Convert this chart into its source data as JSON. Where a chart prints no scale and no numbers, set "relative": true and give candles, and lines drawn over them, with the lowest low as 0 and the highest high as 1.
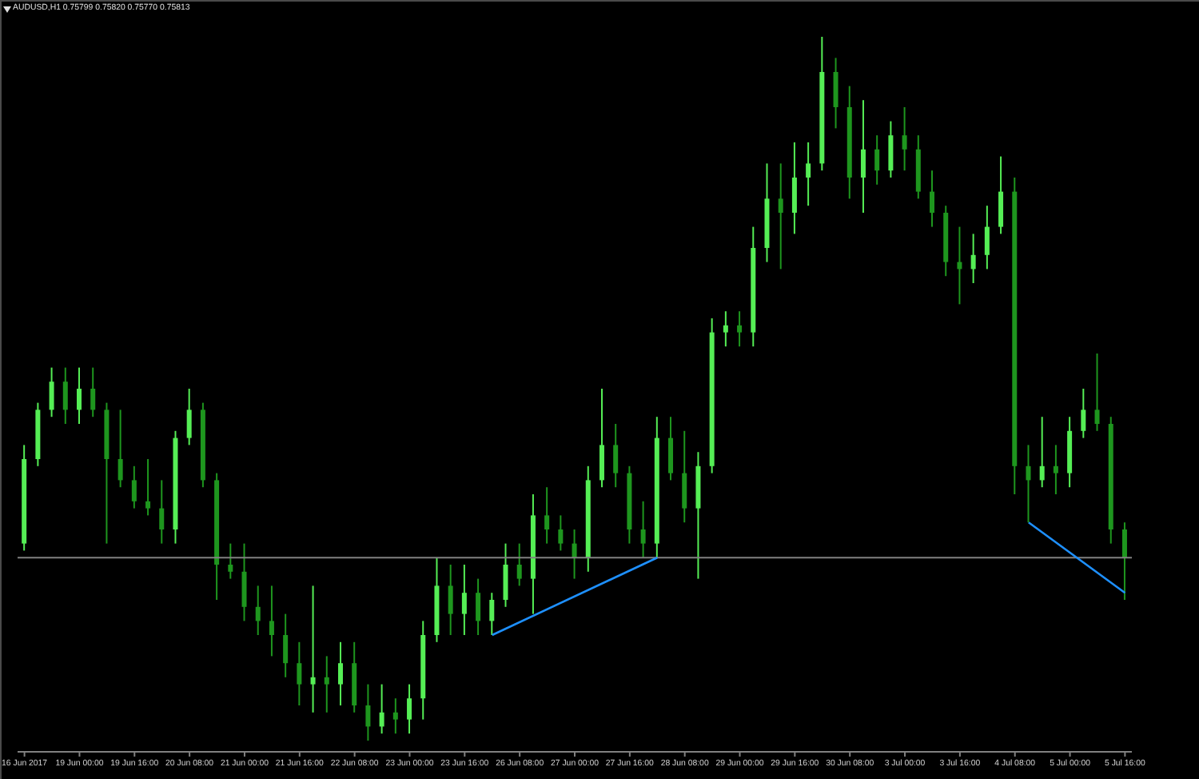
{
  "chart_data": {
    "type": "candlestick",
    "title": "AUDUSD,H1 0.75799 0.75820 0.75770 0.75813",
    "relative": true,
    "categories": [
      "16 Jun 2017",
      null,
      null,
      null,
      "19 Jun 00:00",
      null,
      null,
      null,
      "19 Jun 16:00",
      null,
      null,
      null,
      "20 Jun 08:00",
      null,
      null,
      null,
      "21 Jun 00:00",
      null,
      null,
      null,
      "21 Jun 16:00",
      null,
      null,
      null,
      "22 Jun 08:00",
      null,
      null,
      null,
      "23 Jun 00:00",
      null,
      null,
      null,
      "23 Jun 16:00",
      null,
      null,
      null,
      "26 Jun 08:00",
      null,
      null,
      null,
      "27 Jun 00:00",
      null,
      null,
      null,
      "27 Jun 16:00",
      null,
      null,
      null,
      "28 Jun 08:00",
      null,
      null,
      null,
      "29 Jun 00:00",
      null,
      null,
      null,
      "29 Jun 16:00",
      null,
      null,
      null,
      "30 Jun 08:00",
      null,
      null,
      null,
      "3 Jul 00:00",
      null,
      null,
      null,
      "3 Jul 16:00",
      null,
      null,
      null,
      "4 Jul 08:00",
      null,
      null,
      null,
      "5 Jul 00:00",
      null,
      null,
      null,
      "5 Jul 16:00"
    ],
    "ohlc": [
      [
        0.28,
        0.42,
        0.27,
        0.4
      ],
      [
        0.4,
        0.48,
        0.39,
        0.47
      ],
      [
        0.47,
        0.53,
        0.46,
        0.51
      ],
      [
        0.51,
        0.53,
        0.45,
        0.47
      ],
      [
        0.47,
        0.53,
        0.45,
        0.5
      ],
      [
        0.5,
        0.53,
        0.46,
        0.47
      ],
      [
        0.47,
        0.48,
        0.28,
        0.4
      ],
      [
        0.4,
        0.47,
        0.36,
        0.37
      ],
      [
        0.37,
        0.39,
        0.33,
        0.34
      ],
      [
        0.34,
        0.4,
        0.32,
        0.33
      ],
      [
        0.33,
        0.37,
        0.28,
        0.3
      ],
      [
        0.3,
        0.44,
        0.28,
        0.43
      ],
      [
        0.43,
        0.5,
        0.42,
        0.47
      ],
      [
        0.47,
        0.48,
        0.36,
        0.37
      ],
      [
        0.37,
        0.38,
        0.2,
        0.25
      ],
      [
        0.25,
        0.28,
        0.23,
        0.24
      ],
      [
        0.24,
        0.28,
        0.17,
        0.19
      ],
      [
        0.19,
        0.22,
        0.15,
        0.17
      ],
      [
        0.17,
        0.22,
        0.12,
        0.15
      ],
      [
        0.15,
        0.18,
        0.09,
        0.11
      ],
      [
        0.11,
        0.14,
        0.05,
        0.08
      ],
      [
        0.08,
        0.22,
        0.04,
        0.09
      ],
      [
        0.09,
        0.12,
        0.04,
        0.08
      ],
      [
        0.08,
        0.14,
        0.05,
        0.11
      ],
      [
        0.11,
        0.14,
        0.04,
        0.05
      ],
      [
        0.05,
        0.08,
        0,
        0.02
      ],
      [
        0.02,
        0.08,
        0.01,
        0.04
      ],
      [
        0.04,
        0.06,
        0.01,
        0.03
      ],
      [
        0.03,
        0.08,
        0.01,
        0.06
      ],
      [
        0.06,
        0.17,
        0.03,
        0.15
      ],
      [
        0.15,
        0.26,
        0.14,
        0.22
      ],
      [
        0.22,
        0.25,
        0.15,
        0.18
      ],
      [
        0.18,
        0.25,
        0.15,
        0.21
      ],
      [
        0.21,
        0.23,
        0.15,
        0.17
      ],
      [
        0.17,
        0.21,
        0.15,
        0.2
      ],
      [
        0.2,
        0.28,
        0.19,
        0.25
      ],
      [
        0.25,
        0.28,
        0.22,
        0.23
      ],
      [
        0.23,
        0.35,
        0.18,
        0.32
      ],
      [
        0.32,
        0.36,
        0.28,
        0.3
      ],
      [
        0.3,
        0.32,
        0.27,
        0.28
      ],
      [
        0.28,
        0.3,
        0.23,
        0.26
      ],
      [
        0.26,
        0.39,
        0.24,
        0.37
      ],
      [
        0.37,
        0.5,
        0.36,
        0.42
      ],
      [
        0.42,
        0.45,
        0.36,
        0.38
      ],
      [
        0.38,
        0.39,
        0.28,
        0.3
      ],
      [
        0.3,
        0.34,
        0.26,
        0.28
      ],
      [
        0.28,
        0.46,
        0.26,
        0.43
      ],
      [
        0.43,
        0.46,
        0.37,
        0.38
      ],
      [
        0.38,
        0.44,
        0.31,
        0.33
      ],
      [
        0.33,
        0.41,
        0.23,
        0.39
      ],
      [
        0.39,
        0.6,
        0.38,
        0.58
      ],
      [
        0.58,
        0.61,
        0.56,
        0.59
      ],
      [
        0.59,
        0.61,
        0.56,
        0.58
      ],
      [
        0.58,
        0.73,
        0.56,
        0.7
      ],
      [
        0.7,
        0.82,
        0.68,
        0.77
      ],
      [
        0.77,
        0.82,
        0.67,
        0.75
      ],
      [
        0.75,
        0.85,
        0.72,
        0.8
      ],
      [
        0.8,
        0.85,
        0.76,
        0.82
      ],
      [
        0.82,
        1,
        0.81,
        0.95
      ],
      [
        0.95,
        0.97,
        0.87,
        0.9
      ],
      [
        0.9,
        0.93,
        0.77,
        0.8
      ],
      [
        0.8,
        0.91,
        0.75,
        0.84
      ],
      [
        0.84,
        0.86,
        0.79,
        0.81
      ],
      [
        0.81,
        0.88,
        0.8,
        0.86
      ],
      [
        0.86,
        0.9,
        0.81,
        0.84
      ],
      [
        0.84,
        0.86,
        0.77,
        0.78
      ],
      [
        0.78,
        0.81,
        0.73,
        0.75
      ],
      [
        0.75,
        0.76,
        0.66,
        0.68
      ],
      [
        0.68,
        0.73,
        0.62,
        0.67
      ],
      [
        0.67,
        0.72,
        0.65,
        0.69
      ],
      [
        0.69,
        0.76,
        0.67,
        0.73
      ],
      [
        0.73,
        0.83,
        0.72,
        0.78
      ],
      [
        0.78,
        0.8,
        0.35,
        0.39
      ],
      [
        0.39,
        0.42,
        0.31,
        0.37
      ],
      [
        0.37,
        0.46,
        0.36,
        0.39
      ],
      [
        0.39,
        0.42,
        0.35,
        0.38
      ],
      [
        0.38,
        0.46,
        0.36,
        0.44
      ],
      [
        0.44,
        0.5,
        0.43,
        0.47
      ],
      [
        0.47,
        0.55,
        0.44,
        0.45
      ],
      [
        0.45,
        0.46,
        0.28,
        0.3
      ],
      [
        0.3,
        0.31,
        0.2,
        0.26
      ]
    ],
    "colors": [
      "#55ee55",
      "#55ee55",
      "#55ee55",
      "#1e961e",
      "#55ee55",
      "#1e961e",
      "#1e961e",
      "#1e961e",
      "#1e961e",
      "#1e961e",
      "#1e961e",
      "#55ee55",
      "#55ee55",
      "#1e961e",
      "#1e961e",
      "#1e961e",
      "#1e961e",
      "#1e961e",
      "#1e961e",
      "#1e961e",
      "#1e961e",
      "#55ee55",
      "#1e961e",
      "#55ee55",
      "#1e961e",
      "#1e961e",
      "#55ee55",
      "#1e961e",
      "#55ee55",
      "#55ee55",
      "#55ee55",
      "#1e961e",
      "#55ee55",
      "#1e961e",
      "#55ee55",
      "#55ee55",
      "#1e961e",
      "#55ee55",
      "#1e961e",
      "#1e961e",
      "#1e961e",
      "#55ee55",
      "#55ee55",
      "#1e961e",
      "#1e961e",
      "#1e961e",
      "#55ee55",
      "#1e961e",
      "#1e961e",
      "#55ee55",
      "#55ee55",
      "#55ee55",
      "#1e961e",
      "#55ee55",
      "#55ee55",
      "#1e961e",
      "#55ee55",
      "#55ee55",
      "#55ee55",
      "#1e961e",
      "#1e961e",
      "#55ee55",
      "#1e961e",
      "#55ee55",
      "#1e961e",
      "#1e961e",
      "#1e961e",
      "#1e961e",
      "#1e961e",
      "#55ee55",
      "#55ee55",
      "#55ee55",
      "#1e961e",
      "#1e961e",
      "#55ee55",
      "#1e961e",
      "#55ee55",
      "#55ee55",
      "#1e961e",
      "#1e961e",
      "#1e961e"
    ],
    "series": [
      {
        "type": "line",
        "color": "#1e90ff",
        "values": [
          null,
          null,
          null,
          null,
          null,
          null,
          null,
          null,
          null,
          null,
          null,
          null,
          null,
          null,
          null,
          null,
          null,
          null,
          null,
          null,
          null,
          null,
          null,
          null,
          null,
          null,
          null,
          null,
          null,
          null,
          null,
          null,
          null,
          null,
          0.15,
          null,
          null,
          null,
          null,
          null,
          null,
          null,
          null,
          null,
          null,
          null,
          0.26,
          null,
          null,
          null,
          null,
          null,
          null,
          null,
          null,
          null,
          null,
          null,
          null,
          null,
          null,
          null,
          null,
          null,
          null,
          null,
          null,
          null,
          null,
          null,
          null,
          null,
          null,
          null,
          null,
          null,
          null,
          null,
          null,
          null,
          null
        ]
      },
      {
        "type": "line",
        "color": "#1e90ff",
        "values": [
          null,
          null,
          null,
          null,
          null,
          null,
          null,
          null,
          null,
          null,
          null,
          null,
          null,
          null,
          null,
          null,
          null,
          null,
          null,
          null,
          null,
          null,
          null,
          null,
          null,
          null,
          null,
          null,
          null,
          null,
          null,
          null,
          null,
          null,
          null,
          null,
          null,
          null,
          null,
          null,
          null,
          null,
          null,
          null,
          null,
          null,
          null,
          null,
          null,
          null,
          null,
          null,
          null,
          null,
          null,
          null,
          null,
          null,
          null,
          null,
          null,
          null,
          null,
          null,
          null,
          null,
          null,
          null,
          null,
          null,
          null,
          null,
          null,
          0.31,
          null,
          null,
          null,
          null,
          null,
          null,
          0.21
        ]
      }
    ],
    "ref_lines": [
      {
        "axis": "y",
        "value": 0.26,
        "color": "#808080"
      }
    ]
  }
}
